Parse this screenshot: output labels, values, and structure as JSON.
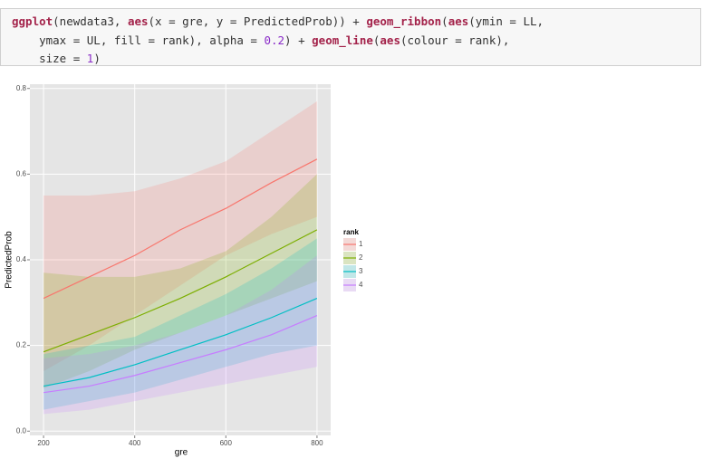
{
  "code": {
    "lines": [
      [
        "ggplot",
        "(newdata3, ",
        "aes",
        "(x = gre, y = PredictedProb)) + ",
        "geom_ribbon",
        "(",
        "aes",
        "(ymin = LL,"
      ],
      [
        "    ymax = UL, fill = rank), alpha = ",
        "0.2",
        ") + ",
        "geom_line",
        "(",
        "aes",
        "(colour = rank),"
      ],
      [
        "    size = ",
        "1",
        ")"
      ]
    ]
  },
  "chart_data": {
    "type": "ribbon_line",
    "x": [
      200,
      300,
      400,
      500,
      600,
      700,
      800
    ],
    "xlabel": "gre",
    "ylabel": "PredictedProb",
    "xlim": [
      170,
      830
    ],
    "xticks": [
      200,
      400,
      600,
      800
    ],
    "ylim": [
      -0.01,
      0.81
    ],
    "yticks": [
      {
        "value": 0,
        "label": "0.0"
      },
      0.2,
      0.4,
      0.6,
      0.8
    ],
    "grid": true,
    "legend_title": "rank",
    "legend": "right",
    "ribbon_alpha": 0.2,
    "series": [
      {
        "name": "1",
        "color": "#F8766D",
        "values": [
          0.31,
          0.36,
          0.41,
          0.47,
          0.52,
          0.58,
          0.635
        ],
        "lower": [
          0.14,
          0.2,
          0.27,
          0.34,
          0.41,
          0.46,
          0.5
        ],
        "upper": [
          0.55,
          0.55,
          0.56,
          0.59,
          0.63,
          0.7,
          0.77
        ]
      },
      {
        "name": "2",
        "color": "#7CAE00",
        "values": [
          0.185,
          0.225,
          0.265,
          0.31,
          0.36,
          0.415,
          0.47
        ],
        "lower": [
          0.1,
          0.14,
          0.19,
          0.23,
          0.27,
          0.31,
          0.35
        ],
        "upper": [
          0.37,
          0.36,
          0.36,
          0.38,
          0.42,
          0.5,
          0.6
        ]
      },
      {
        "name": "3",
        "color": "#00BFC4",
        "values": [
          0.105,
          0.125,
          0.155,
          0.19,
          0.225,
          0.265,
          0.31
        ],
        "lower": [
          0.05,
          0.07,
          0.09,
          0.12,
          0.15,
          0.18,
          0.2
        ],
        "upper": [
          0.18,
          0.2,
          0.22,
          0.27,
          0.32,
          0.38,
          0.45
        ]
      },
      {
        "name": "4",
        "color": "#C77CFF",
        "values": [
          0.09,
          0.105,
          0.13,
          0.16,
          0.19,
          0.225,
          0.27
        ],
        "lower": [
          0.04,
          0.05,
          0.07,
          0.09,
          0.11,
          0.13,
          0.15
        ],
        "upper": [
          0.17,
          0.18,
          0.2,
          0.23,
          0.27,
          0.33,
          0.41
        ]
      }
    ]
  }
}
